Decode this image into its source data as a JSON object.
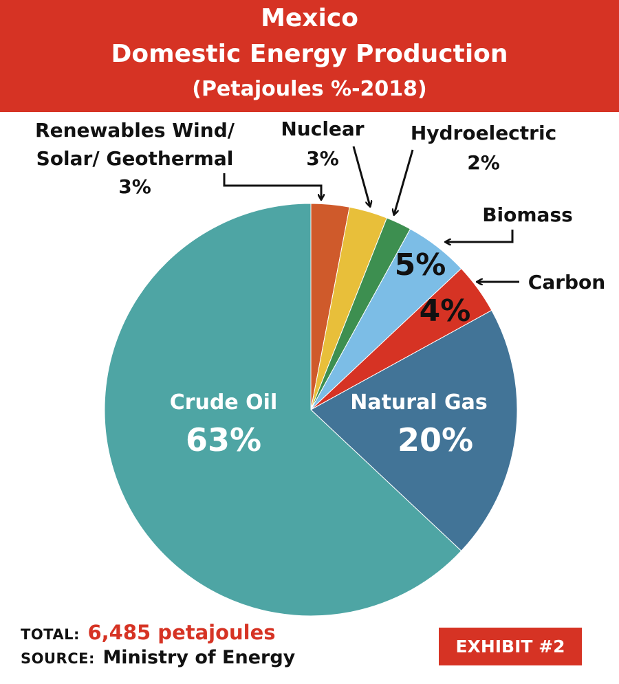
{
  "header": {
    "line1": "Mexico",
    "line2": "Domestic Energy Production",
    "line3": "(Petajoules %-2018)"
  },
  "chart_data": {
    "type": "pie",
    "title": "Mexico Domestic Energy Production (Petajoules %-2018)",
    "slices": [
      {
        "label": "Renewables Wind/ Solar/ Geothermal",
        "value": 3,
        "display": "3%",
        "color": "#cf5a2b"
      },
      {
        "label": "Nuclear",
        "value": 3,
        "display": "3%",
        "color": "#e8bf3a"
      },
      {
        "label": "Hydroelectric",
        "value": 2,
        "display": "2%",
        "color": "#3d8f50"
      },
      {
        "label": "Biomass",
        "value": 5,
        "display": "5%",
        "color": "#7cbde6"
      },
      {
        "label": "Carbon",
        "value": 4,
        "display": "4%",
        "color": "#d63324"
      },
      {
        "label": "Natural Gas",
        "value": 20,
        "display": "20%",
        "color": "#427497"
      },
      {
        "label": "Crude Oil",
        "value": 63,
        "display": "63%",
        "color": "#4ea5a4"
      }
    ]
  },
  "labels": {
    "renewables_line1": "Renewables Wind/",
    "renewables_line2": "Solar/ Geothermal",
    "renewables_pct": "3%",
    "nuclear": "Nuclear",
    "nuclear_pct": "3%",
    "hydro": "Hydroelectric",
    "hydro_pct": "2%",
    "biomass": "Biomass",
    "biomass_pct": "5%",
    "carbon": "Carbon",
    "carbon_pct": "4%",
    "natgas": "Natural Gas",
    "natgas_pct": "20%",
    "crude": "Crude Oil",
    "crude_pct": "63%"
  },
  "footer": {
    "total_label": "TOTAL:",
    "total_value": "6,485 petajoules",
    "source_label": "SOURCE:",
    "source_value": "Ministry of Energy",
    "exhibit": "EXHIBIT #2"
  }
}
